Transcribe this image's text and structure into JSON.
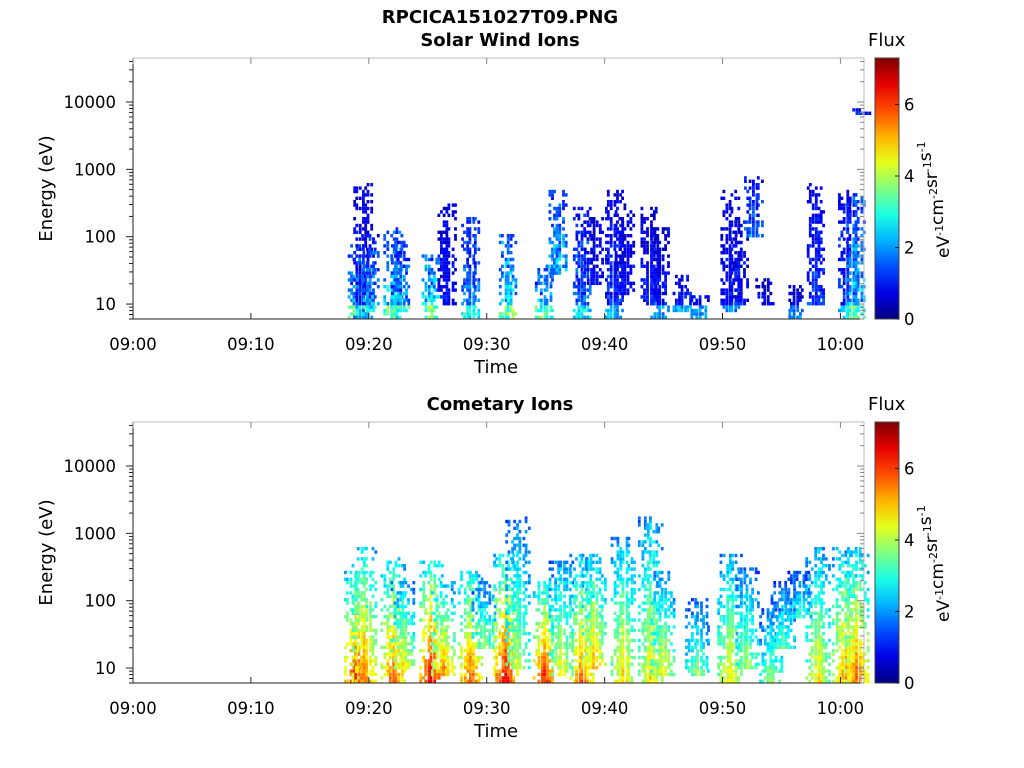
{
  "figure_title": "RPCICA151027T09.PNG",
  "chart_data": [
    {
      "type": "heatmap",
      "title": "Solar Wind Ions",
      "xlabel": "Time",
      "ylabel": "Energy (eV)",
      "x_ticks": [
        "09:00",
        "09:10",
        "09:20",
        "09:30",
        "09:40",
        "09:50",
        "10:00"
      ],
      "x_range": [
        "09:00",
        "10:02"
      ],
      "y_scale": "log",
      "y_ticks": [
        10,
        100,
        1000,
        10000
      ],
      "y_range": [
        6,
        45000
      ],
      "colorbar": {
        "label": "Flux",
        "unit": "eV-1cm-2sr-1s-1",
        "range": [
          0,
          7.3
        ],
        "ticks": [
          0,
          2,
          4,
          6
        ]
      },
      "bursts": [
        {
          "time": "09:18.9",
          "emin": 6,
          "emax": 80,
          "peak": 3.0
        },
        {
          "time": "09:19.4",
          "emin": 6,
          "emax": 680,
          "peak": 1.5
        },
        {
          "time": "09:20.0",
          "emin": 8,
          "emax": 120,
          "peak": 2.5
        },
        {
          "time": "09:22.0",
          "emin": 6,
          "emax": 140,
          "peak": 3.2
        },
        {
          "time": "09:22.6",
          "emin": 8,
          "emax": 90,
          "peak": 2.6
        },
        {
          "time": "09:25.2",
          "emin": 6,
          "emax": 60,
          "peak": 3.6
        },
        {
          "time": "09:26.5",
          "emin": 10,
          "emax": 330,
          "peak": 1.2
        },
        {
          "time": "09:28.5",
          "emin": 6,
          "emax": 200,
          "peak": 2.4
        },
        {
          "time": "09:31.7",
          "emin": 6,
          "emax": 110,
          "peak": 3.4
        },
        {
          "time": "09:34.8",
          "emin": 6,
          "emax": 40,
          "peak": 3.0
        },
        {
          "time": "09:35.9",
          "emin": 30,
          "emax": 550,
          "peak": 2.8
        },
        {
          "time": "09:38.0",
          "emin": 6,
          "emax": 300,
          "peak": 2.2
        },
        {
          "time": "09:39.0",
          "emin": 20,
          "emax": 200,
          "peak": 1.2
        },
        {
          "time": "09:40.7",
          "emin": 6,
          "emax": 550,
          "peak": 1.6
        },
        {
          "time": "09:41.6",
          "emin": 15,
          "emax": 320,
          "peak": 1.2
        },
        {
          "time": "09:43.8",
          "emin": 10,
          "emax": 300,
          "peak": 1.3
        },
        {
          "time": "09:44.6",
          "emin": 6,
          "emax": 150,
          "peak": 1.4
        },
        {
          "time": "09:46.5",
          "emin": 8,
          "emax": 30,
          "peak": 1.5
        },
        {
          "time": "09:48.0",
          "emin": 6,
          "emax": 15,
          "peak": 1.5
        },
        {
          "time": "09:50.5",
          "emin": 8,
          "emax": 500,
          "peak": 1.3
        },
        {
          "time": "09:51.3",
          "emin": 10,
          "emax": 200,
          "peak": 1.3
        },
        {
          "time": "09:52.5",
          "emin": 100,
          "emax": 800,
          "peak": 2.0
        },
        {
          "time": "09:53.5",
          "emin": 10,
          "emax": 25,
          "peak": 1.2
        },
        {
          "time": "09:56.0",
          "emin": 6,
          "emax": 20,
          "peak": 1.2
        },
        {
          "time": "09:57.8",
          "emin": 10,
          "emax": 650,
          "peak": 1.6
        },
        {
          "time": "10:00.5",
          "emin": 6,
          "emax": 550,
          "peak": 1.8
        },
        {
          "time": "10:01.2",
          "emin": 6,
          "emax": 450,
          "peak": 3.0
        },
        {
          "time": "10:01.7",
          "emin": 7000,
          "emax": 9000,
          "peak": 1.5
        }
      ]
    },
    {
      "type": "heatmap",
      "title": "Cometary Ions",
      "xlabel": "Time",
      "ylabel": "Energy (eV)",
      "x_ticks": [
        "09:00",
        "09:10",
        "09:20",
        "09:30",
        "09:40",
        "09:50",
        "10:00"
      ],
      "x_range": [
        "09:00",
        "10:02"
      ],
      "y_scale": "log",
      "y_ticks": [
        10,
        100,
        1000,
        10000
      ],
      "y_range": [
        6,
        45000
      ],
      "colorbar": {
        "label": "Flux",
        "unit": "eV-1cm-2sr-1s-1",
        "range": [
          0,
          7.3
        ],
        "ticks": [
          0,
          2,
          4,
          6
        ]
      },
      "bursts": [
        {
          "time": "09:18.8",
          "emin": 6,
          "emax": 300,
          "peak": 6.5
        },
        {
          "time": "09:19.5",
          "emin": 6,
          "emax": 700,
          "peak": 5.8
        },
        {
          "time": "09:22.0",
          "emin": 6,
          "emax": 450,
          "peak": 6.0
        },
        {
          "time": "09:22.8",
          "emin": 10,
          "emax": 200,
          "peak": 4.8
        },
        {
          "time": "09:25.2",
          "emin": 6,
          "emax": 400,
          "peak": 6.8
        },
        {
          "time": "09:26.2",
          "emin": 8,
          "emax": 200,
          "peak": 5.5
        },
        {
          "time": "09:28.5",
          "emin": 6,
          "emax": 300,
          "peak": 6.0
        },
        {
          "time": "09:29.7",
          "emin": 20,
          "emax": 200,
          "peak": 4.0
        },
        {
          "time": "09:31.5",
          "emin": 6,
          "emax": 500,
          "peak": 6.6
        },
        {
          "time": "09:32.5",
          "emin": 10,
          "emax": 1800,
          "peak": 4.2
        },
        {
          "time": "09:34.8",
          "emin": 6,
          "emax": 200,
          "peak": 6.4
        },
        {
          "time": "09:36.2",
          "emin": 8,
          "emax": 400,
          "peak": 4.6
        },
        {
          "time": "09:38.0",
          "emin": 6,
          "emax": 500,
          "peak": 5.8
        },
        {
          "time": "09:39.0",
          "emin": 10,
          "emax": 550,
          "peak": 5.2
        },
        {
          "time": "09:41.5",
          "emin": 6,
          "emax": 900,
          "peak": 5.0
        },
        {
          "time": "09:43.8",
          "emin": 6,
          "emax": 2000,
          "peak": 4.8
        },
        {
          "time": "09:44.8",
          "emin": 8,
          "emax": 300,
          "peak": 4.6
        },
        {
          "time": "09:47.8",
          "emin": 8,
          "emax": 120,
          "peak": 3.8
        },
        {
          "time": "09:50.5",
          "emin": 6,
          "emax": 550,
          "peak": 4.8
        },
        {
          "time": "09:52.0",
          "emin": 10,
          "emax": 350,
          "peak": 4.0
        },
        {
          "time": "09:54.0",
          "emin": 6,
          "emax": 80,
          "peak": 4.0
        },
        {
          "time": "09:55.0",
          "emin": 20,
          "emax": 200,
          "peak": 3.5
        },
        {
          "time": "09:56.5",
          "emin": 60,
          "emax": 300,
          "peak": 3.2
        },
        {
          "time": "09:58.0",
          "emin": 6,
          "emax": 650,
          "peak": 4.8
        },
        {
          "time": "10:00.3",
          "emin": 6,
          "emax": 700,
          "peak": 5.5
        },
        {
          "time": "10:01.3",
          "emin": 6,
          "emax": 650,
          "peak": 5.8
        }
      ]
    }
  ]
}
